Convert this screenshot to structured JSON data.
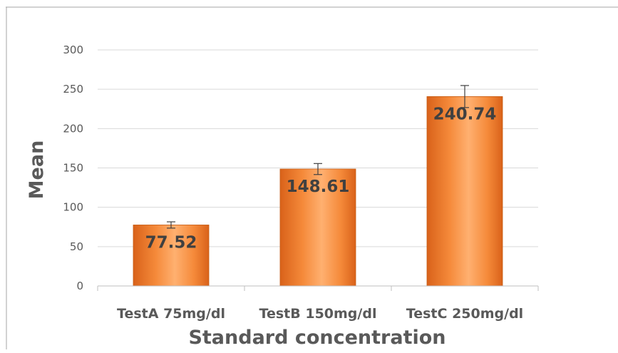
{
  "chart_data": {
    "type": "bar",
    "categories": [
      "TestA 75mg/dl",
      "TestB 150mg/dl",
      "TestC 250mg/dl"
    ],
    "values": [
      77.52,
      148.61,
      240.74
    ],
    "error": [
      4,
      7,
      14
    ],
    "data_labels": [
      "77.52",
      "148.61",
      "240.74"
    ],
    "title": "",
    "xlabel": "Standard concentration",
    "ylabel": "Mean",
    "ylim": [
      0,
      300
    ],
    "yticks": [
      0,
      50,
      100,
      150,
      200,
      250,
      300
    ],
    "grid": true,
    "legend": "none",
    "colors": {
      "bar_top": "#ffb070",
      "bar_mid": "#f58a3a",
      "bar_bottom": "#d9621a",
      "bar_edge": "#c55a11",
      "gridline": "#d9d9d9",
      "axis": "#bfbfbf",
      "error_bar": "#404040"
    }
  }
}
